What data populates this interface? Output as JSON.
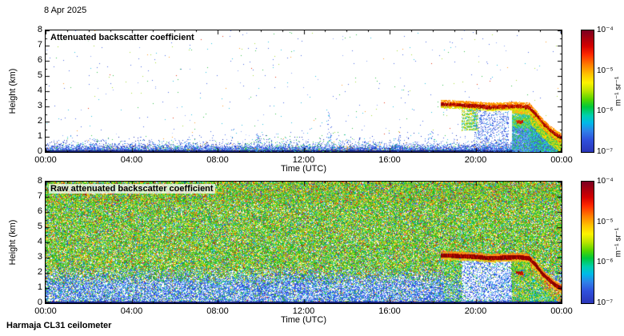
{
  "page": {
    "date_label": "8 Apr 2025",
    "footer_label": "Harmaja CL31 ceilometer"
  },
  "chart_data": [
    {
      "type": "heatmap",
      "title": "Attenuated backscatter coefficient",
      "xlabel": "Time (UTC)",
      "ylabel": "Height (km)",
      "x_ticks": [
        "00:00",
        "04:00",
        "08:00",
        "12:00",
        "16:00",
        "20:00",
        "00:00"
      ],
      "xlim_hours": [
        0,
        24
      ],
      "y_ticks": [
        0,
        1,
        2,
        3,
        4,
        5,
        6,
        7,
        8
      ],
      "ylim_km": [
        0,
        8
      ],
      "grid": false,
      "colorbar": {
        "unit": "m⁻¹ sr⁻¹",
        "ticks": [
          "10⁻⁴",
          "10⁻⁵",
          "10⁻⁶",
          "10⁻⁷"
        ],
        "scale": "log",
        "range": [
          1e-07,
          0.0001
        ]
      },
      "features": {
        "boundary_layer_top_km": 0.5,
        "boundary_layer_scale": 0.16,
        "noise_density": 0.0042,
        "plumes": [
          [
            2.2,
            0.9,
            25
          ],
          [
            6.6,
            1.0,
            22
          ],
          [
            9.9,
            1.2,
            28
          ],
          [
            13.2,
            2.6,
            40
          ],
          [
            16.4,
            1.1,
            25
          ],
          [
            17.9,
            1.4,
            30
          ]
        ],
        "cloud_track": [
          [
            18.4,
            3.15
          ],
          [
            19.2,
            3.1
          ],
          [
            20.0,
            3.05
          ],
          [
            20.7,
            2.95
          ],
          [
            21.3,
            3.0
          ],
          [
            22.0,
            3.02
          ],
          [
            22.5,
            2.95
          ],
          [
            22.8,
            2.5
          ],
          [
            23.1,
            1.95
          ],
          [
            23.4,
            1.55
          ],
          [
            23.7,
            1.2
          ],
          [
            24.0,
            0.95
          ]
        ],
        "secondary_cloud": [
          21.9,
          22.2,
          2.0
        ]
      }
    },
    {
      "type": "heatmap",
      "title": "Raw attenuated backscatter coefficient",
      "xlabel": "Time (UTC)",
      "ylabel": "Height (km)",
      "x_ticks": [
        "00:00",
        "04:00",
        "08:00",
        "12:00",
        "16:00",
        "20:00",
        "00:00"
      ],
      "xlim_hours": [
        0,
        24
      ],
      "y_ticks": [
        0,
        1,
        2,
        3,
        4,
        5,
        6,
        7,
        8
      ],
      "ylim_km": [
        0,
        8
      ],
      "grid": false,
      "colorbar": {
        "unit": "m⁻¹ sr⁻¹",
        "ticks": [
          "10⁻⁴",
          "10⁻⁵",
          "10⁻⁶",
          "10⁻⁷"
        ],
        "scale": "log",
        "range": [
          1e-07,
          0.0001
        ]
      },
      "features": {
        "cloud_track": [
          [
            18.4,
            3.15
          ],
          [
            19.2,
            3.1
          ],
          [
            20.0,
            3.05
          ],
          [
            20.7,
            2.95
          ],
          [
            21.3,
            3.0
          ],
          [
            22.0,
            3.02
          ],
          [
            22.5,
            2.95
          ],
          [
            22.8,
            2.5
          ],
          [
            23.1,
            1.95
          ],
          [
            23.4,
            1.55
          ],
          [
            23.7,
            1.2
          ],
          [
            24.0,
            0.95
          ]
        ],
        "clearing": [
          19.35,
          21.62
        ],
        "precip_column_a": [
          18.55,
          19.35
        ],
        "precip_column_b": [
          21.7,
          22.55
        ],
        "descent_fill": [
          22.55,
          24
        ],
        "secondary_cloud": [
          21.9,
          22.2,
          2.0
        ]
      }
    }
  ]
}
